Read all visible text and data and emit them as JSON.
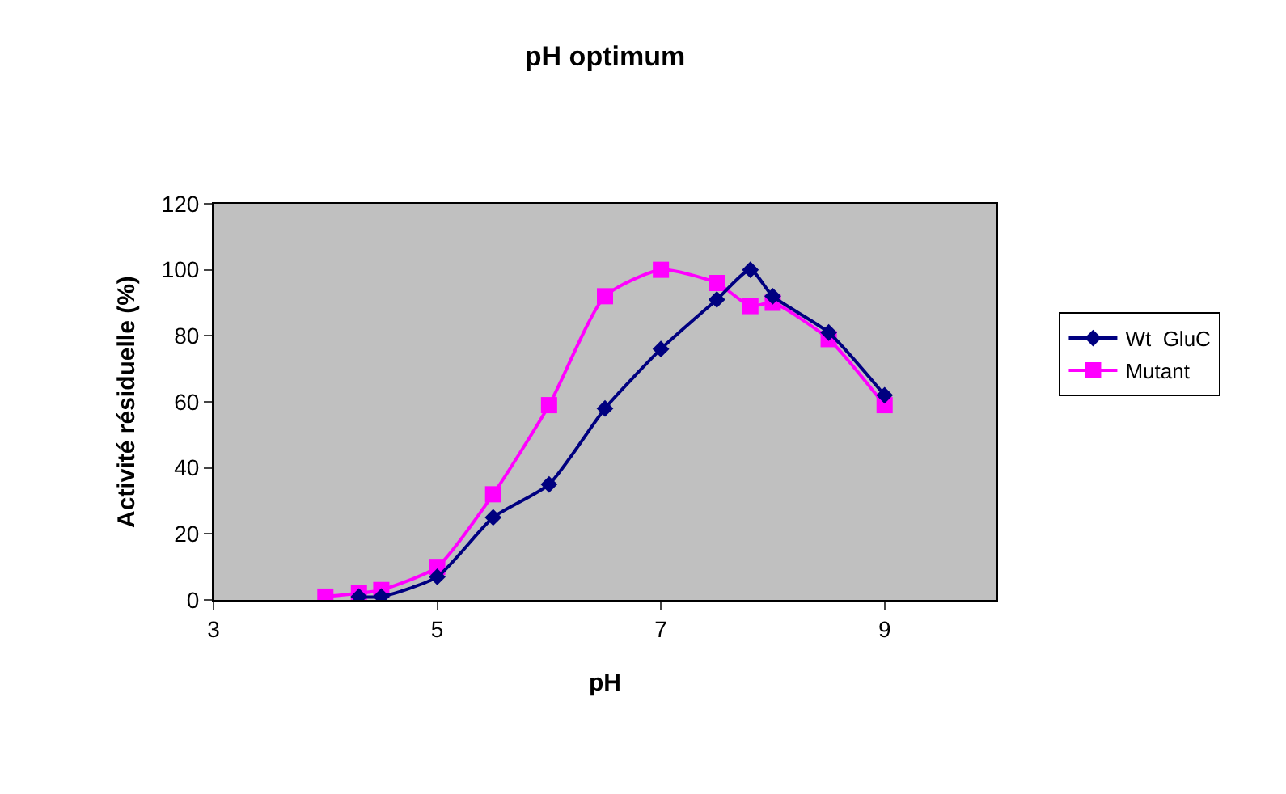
{
  "chart_data": {
    "type": "line",
    "title": "pH optimum",
    "xlabel": "pH",
    "ylabel": "Activité résiduelle (%)",
    "series": [
      {
        "name": "Wt  GluC",
        "color": "#000080",
        "marker": "diamond",
        "x": [
          4.3,
          4.5,
          5,
          5.5,
          6,
          6.5,
          7,
          7.5,
          7.8,
          8,
          8.5,
          9
        ],
        "values": [
          1,
          1,
          7,
          25,
          35,
          58,
          76,
          91,
          100,
          92,
          81,
          62
        ]
      },
      {
        "name": "Mutant",
        "color": "#ff00ff",
        "marker": "square",
        "x": [
          4,
          4.3,
          4.5,
          5,
          5.5,
          6,
          6.5,
          7,
          7.5,
          7.8,
          8,
          8.5,
          9
        ],
        "values": [
          1,
          2,
          3,
          10,
          32,
          59,
          92,
          100,
          96,
          89,
          90,
          79,
          59
        ]
      }
    ],
    "xlim": [
      3,
      10
    ],
    "xticks": [
      3,
      5,
      7,
      9
    ],
    "ylim": [
      0,
      120
    ],
    "yticks": [
      0,
      20,
      40,
      60,
      80,
      100,
      120
    ],
    "grid": false,
    "legend": "right"
  }
}
